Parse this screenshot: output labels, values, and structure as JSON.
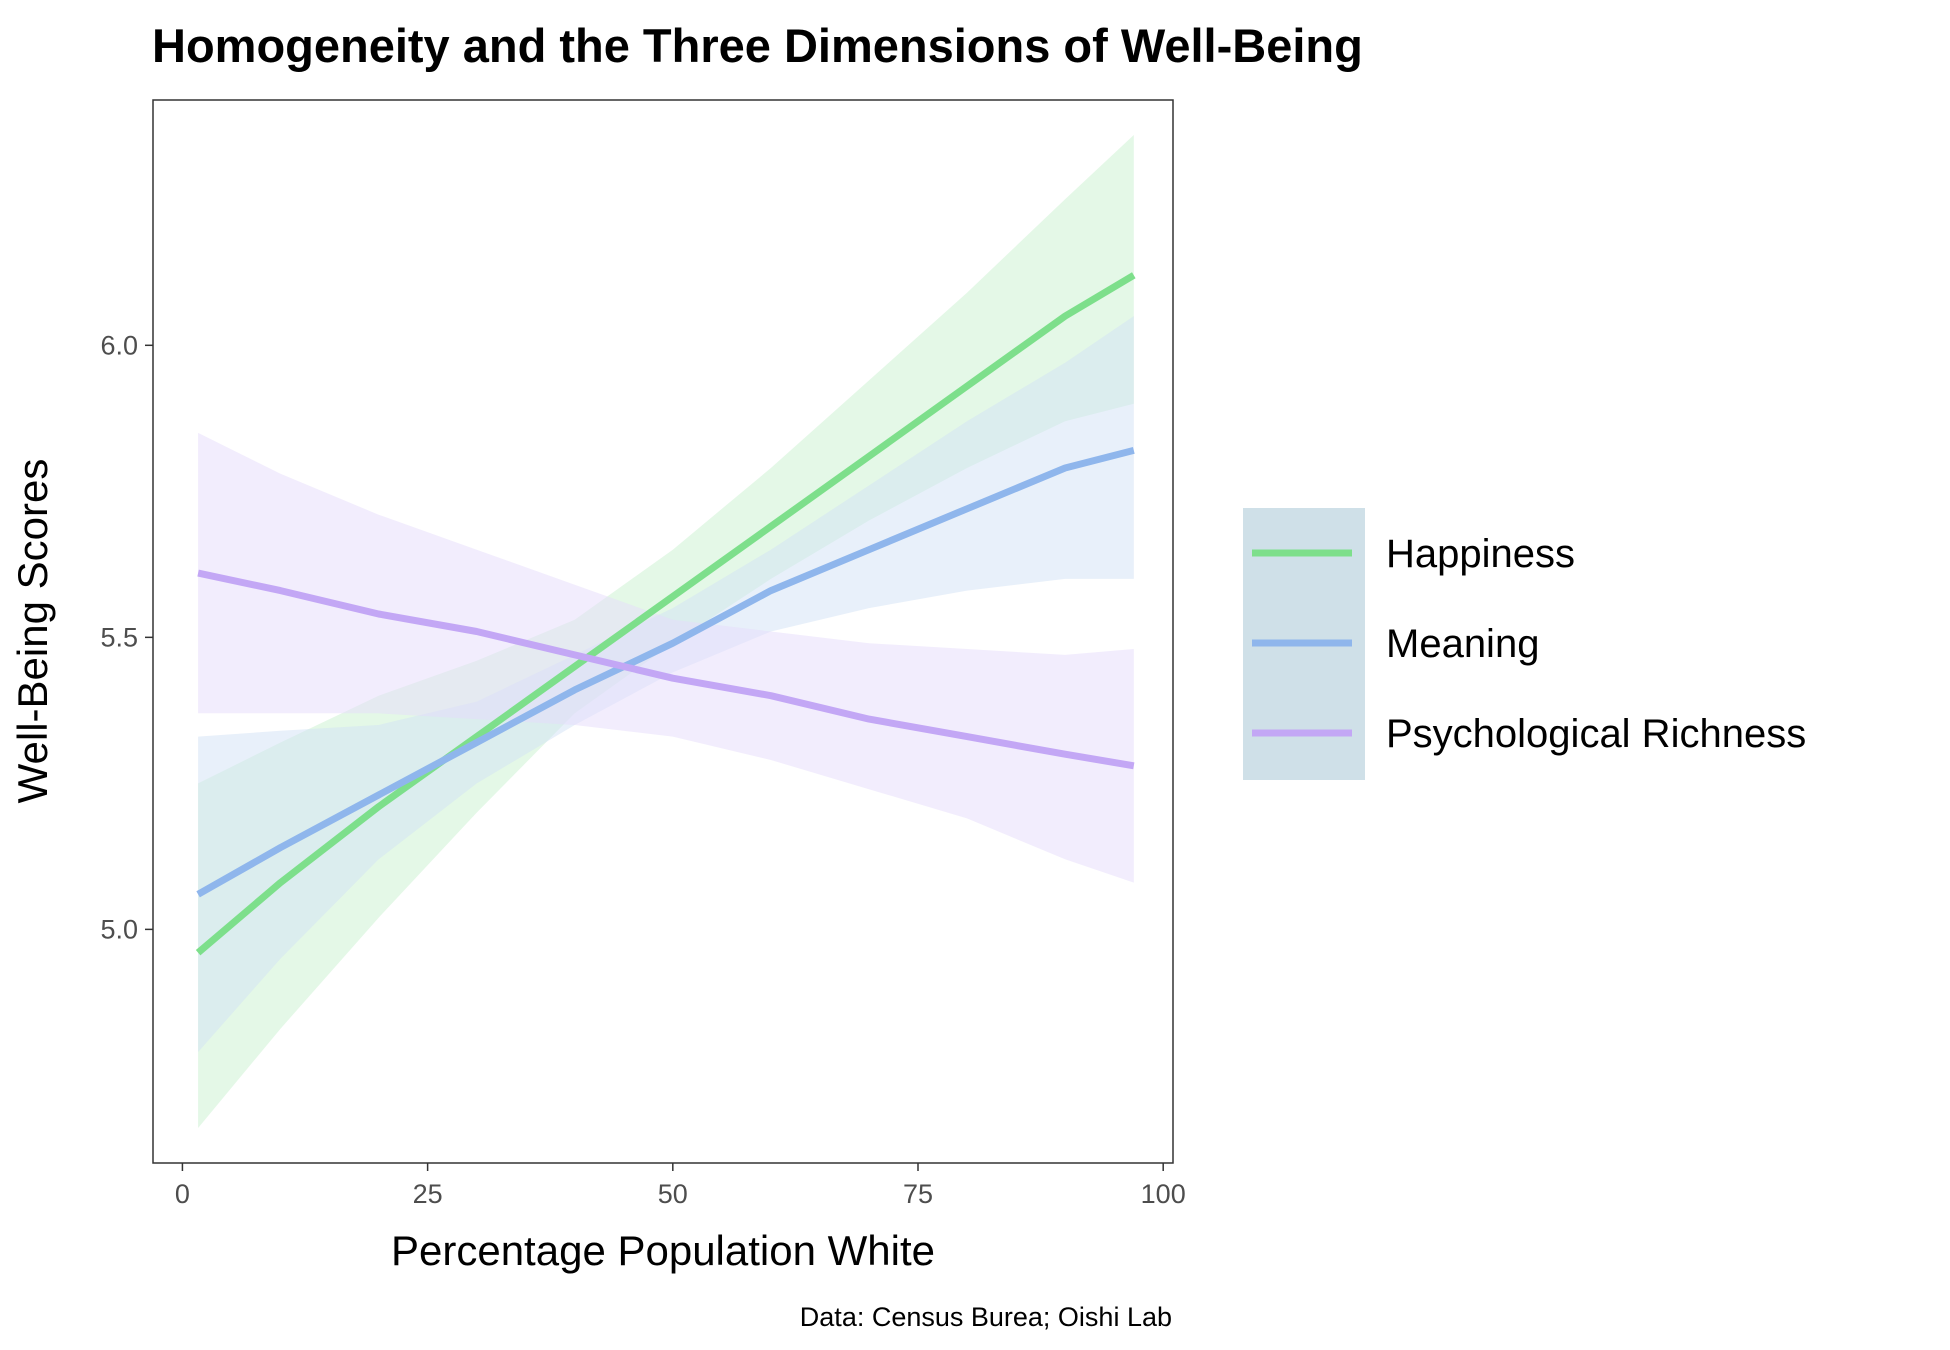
{
  "chart_data": {
    "type": "line",
    "title": "Homogeneity and the Three Dimensions of Well-Being",
    "xlabel": "Percentage Population White",
    "ylabel": "Well-Being Scores",
    "caption": "Data: Census Burea; Oishi Lab",
    "xlim": [
      -3,
      101
    ],
    "ylim": [
      4.6,
      6.42
    ],
    "x_ticks": [
      {
        "value": 0,
        "label": "0"
      },
      {
        "value": 25,
        "label": "25"
      },
      {
        "value": 50,
        "label": "50"
      },
      {
        "value": 75,
        "label": "75"
      },
      {
        "value": 100,
        "label": "100"
      }
    ],
    "y_ticks": [
      {
        "value": 5.0,
        "label": "5.0"
      },
      {
        "value": 5.5,
        "label": "5.5"
      },
      {
        "value": 6.0,
        "label": "6.0"
      }
    ],
    "grid": false,
    "legend": {
      "position": "right",
      "background": "#cfe0e8"
    },
    "series": [
      {
        "name": "Happiness",
        "color": "#7ddf8b",
        "band_color": "#c9f2cf",
        "x": [
          1.6,
          10,
          20,
          30,
          40,
          50,
          60,
          70,
          80,
          90,
          97
        ],
        "y": [
          4.96,
          5.08,
          5.21,
          5.33,
          5.45,
          5.57,
          5.69,
          5.81,
          5.93,
          6.05,
          6.12
        ],
        "lower": [
          4.66,
          4.83,
          5.02,
          5.2,
          5.37,
          5.49,
          5.6,
          5.7,
          5.79,
          5.87,
          5.9
        ],
        "upper": [
          5.25,
          5.32,
          5.4,
          5.46,
          5.53,
          5.65,
          5.79,
          5.94,
          6.09,
          6.25,
          6.36
        ]
      },
      {
        "name": "Meaning",
        "color": "#8fb6ec",
        "band_color": "#d2e2f6",
        "x": [
          1.6,
          10,
          20,
          30,
          40,
          50,
          60,
          70,
          80,
          90,
          97
        ],
        "y": [
          5.06,
          5.14,
          5.23,
          5.32,
          5.41,
          5.49,
          5.58,
          5.65,
          5.72,
          5.79,
          5.82
        ],
        "lower": [
          4.79,
          4.95,
          5.12,
          5.25,
          5.35,
          5.44,
          5.51,
          5.55,
          5.58,
          5.6,
          5.6
        ],
        "upper": [
          5.33,
          5.34,
          5.35,
          5.39,
          5.47,
          5.55,
          5.65,
          5.76,
          5.87,
          5.97,
          6.05
        ]
      },
      {
        "name": "Psychological Richness",
        "color": "#c3a7f5",
        "band_color": "#e6dcfb",
        "x": [
          1.6,
          10,
          20,
          30,
          40,
          50,
          60,
          70,
          80,
          90,
          97
        ],
        "y": [
          5.61,
          5.58,
          5.54,
          5.51,
          5.47,
          5.43,
          5.4,
          5.36,
          5.33,
          5.3,
          5.28
        ],
        "lower": [
          5.37,
          5.37,
          5.37,
          5.36,
          5.35,
          5.33,
          5.29,
          5.24,
          5.19,
          5.12,
          5.08
        ],
        "upper": [
          5.85,
          5.78,
          5.71,
          5.65,
          5.59,
          5.53,
          5.51,
          5.49,
          5.48,
          5.47,
          5.48
        ]
      }
    ]
  }
}
